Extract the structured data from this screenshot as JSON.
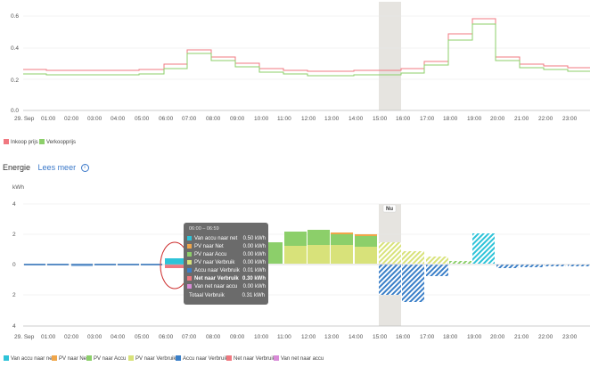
{
  "price_chart": {
    "y_ticks": [
      "0.0",
      "0.2",
      "0.4",
      "0.6"
    ],
    "x_ticks": [
      "29. Sep",
      "01:00",
      "02:00",
      "03:00",
      "04:00",
      "05:00",
      "06:00",
      "07:00",
      "08:00",
      "09:00",
      "10:00",
      "11:00",
      "12:00",
      "13:00",
      "14:00",
      "15:00",
      "16:00",
      "17:00",
      "18:00",
      "19:00",
      "20:00",
      "21:00",
      "22:00",
      "23:00"
    ],
    "legend": [
      {
        "label": "Inkoop prijs",
        "color": "#f07880"
      },
      {
        "label": "Verkoopprijs",
        "color": "#8ccf6a"
      }
    ]
  },
  "energy_header": {
    "title": "Energie",
    "link": "Lees meer",
    "info_icon": "info-icon"
  },
  "energy_chart": {
    "y_unit": "kWh",
    "y_ticks": [
      "4",
      "2",
      "0",
      "2",
      "4"
    ],
    "now_label": "Nu",
    "x_ticks": [
      "29. Sep",
      "01:00",
      "02:00",
      "03:00",
      "04:00",
      "05:00",
      "06:00",
      "07:00",
      "08:00",
      "09:00",
      "10:00",
      "11:00",
      "12:00",
      "13:00",
      "14:00",
      "15:00",
      "16:00",
      "17:00",
      "18:00",
      "19:00",
      "20:00",
      "21:00",
      "22:00",
      "23:00"
    ],
    "legend": [
      {
        "label": "Van accu naar net",
        "color": "#2ec3d8"
      },
      {
        "label": "PV naar Net",
        "color": "#f0a64a"
      },
      {
        "label": "PV naar Accu",
        "color": "#8ccf6a"
      },
      {
        "label": "PV naar Verbruik",
        "color": "#d8e27a"
      },
      {
        "label": "Accu naar Verbruik",
        "color": "#3a7fc8"
      },
      {
        "label": "Net naar Verbruik",
        "color": "#f07880"
      },
      {
        "label": "Van net naar accu",
        "color": "#d98bd8"
      }
    ]
  },
  "tooltip": {
    "title": "06:00 – 06:59",
    "rows": [
      {
        "label": "Van accu naar net",
        "value": "0.50 kWh",
        "color": "#2ec3d8",
        "bold": false
      },
      {
        "label": "PV naar Net",
        "value": "0.00 kWh",
        "color": "#f0a64a",
        "bold": false
      },
      {
        "label": "PV naar Accu",
        "value": "0.00 kWh",
        "color": "#8ccf6a",
        "bold": false
      },
      {
        "label": "PV naar Verbruik",
        "value": "0.00 kWh",
        "color": "#d8e27a",
        "bold": false
      },
      {
        "label": "Accu naar Verbruik",
        "value": "0.01 kWh",
        "color": "#3a7fc8",
        "bold": false
      },
      {
        "label": "Net naar Verbruik",
        "value": "0.30 kWh",
        "color": "#f07880",
        "bold": true
      },
      {
        "label": "Van net naar accu",
        "value": "0.00 kWh",
        "color": "#d98bd8",
        "bold": false
      }
    ],
    "total_label": "Totaal Verbruik",
    "total_value": "0.31 kWh"
  }
}
